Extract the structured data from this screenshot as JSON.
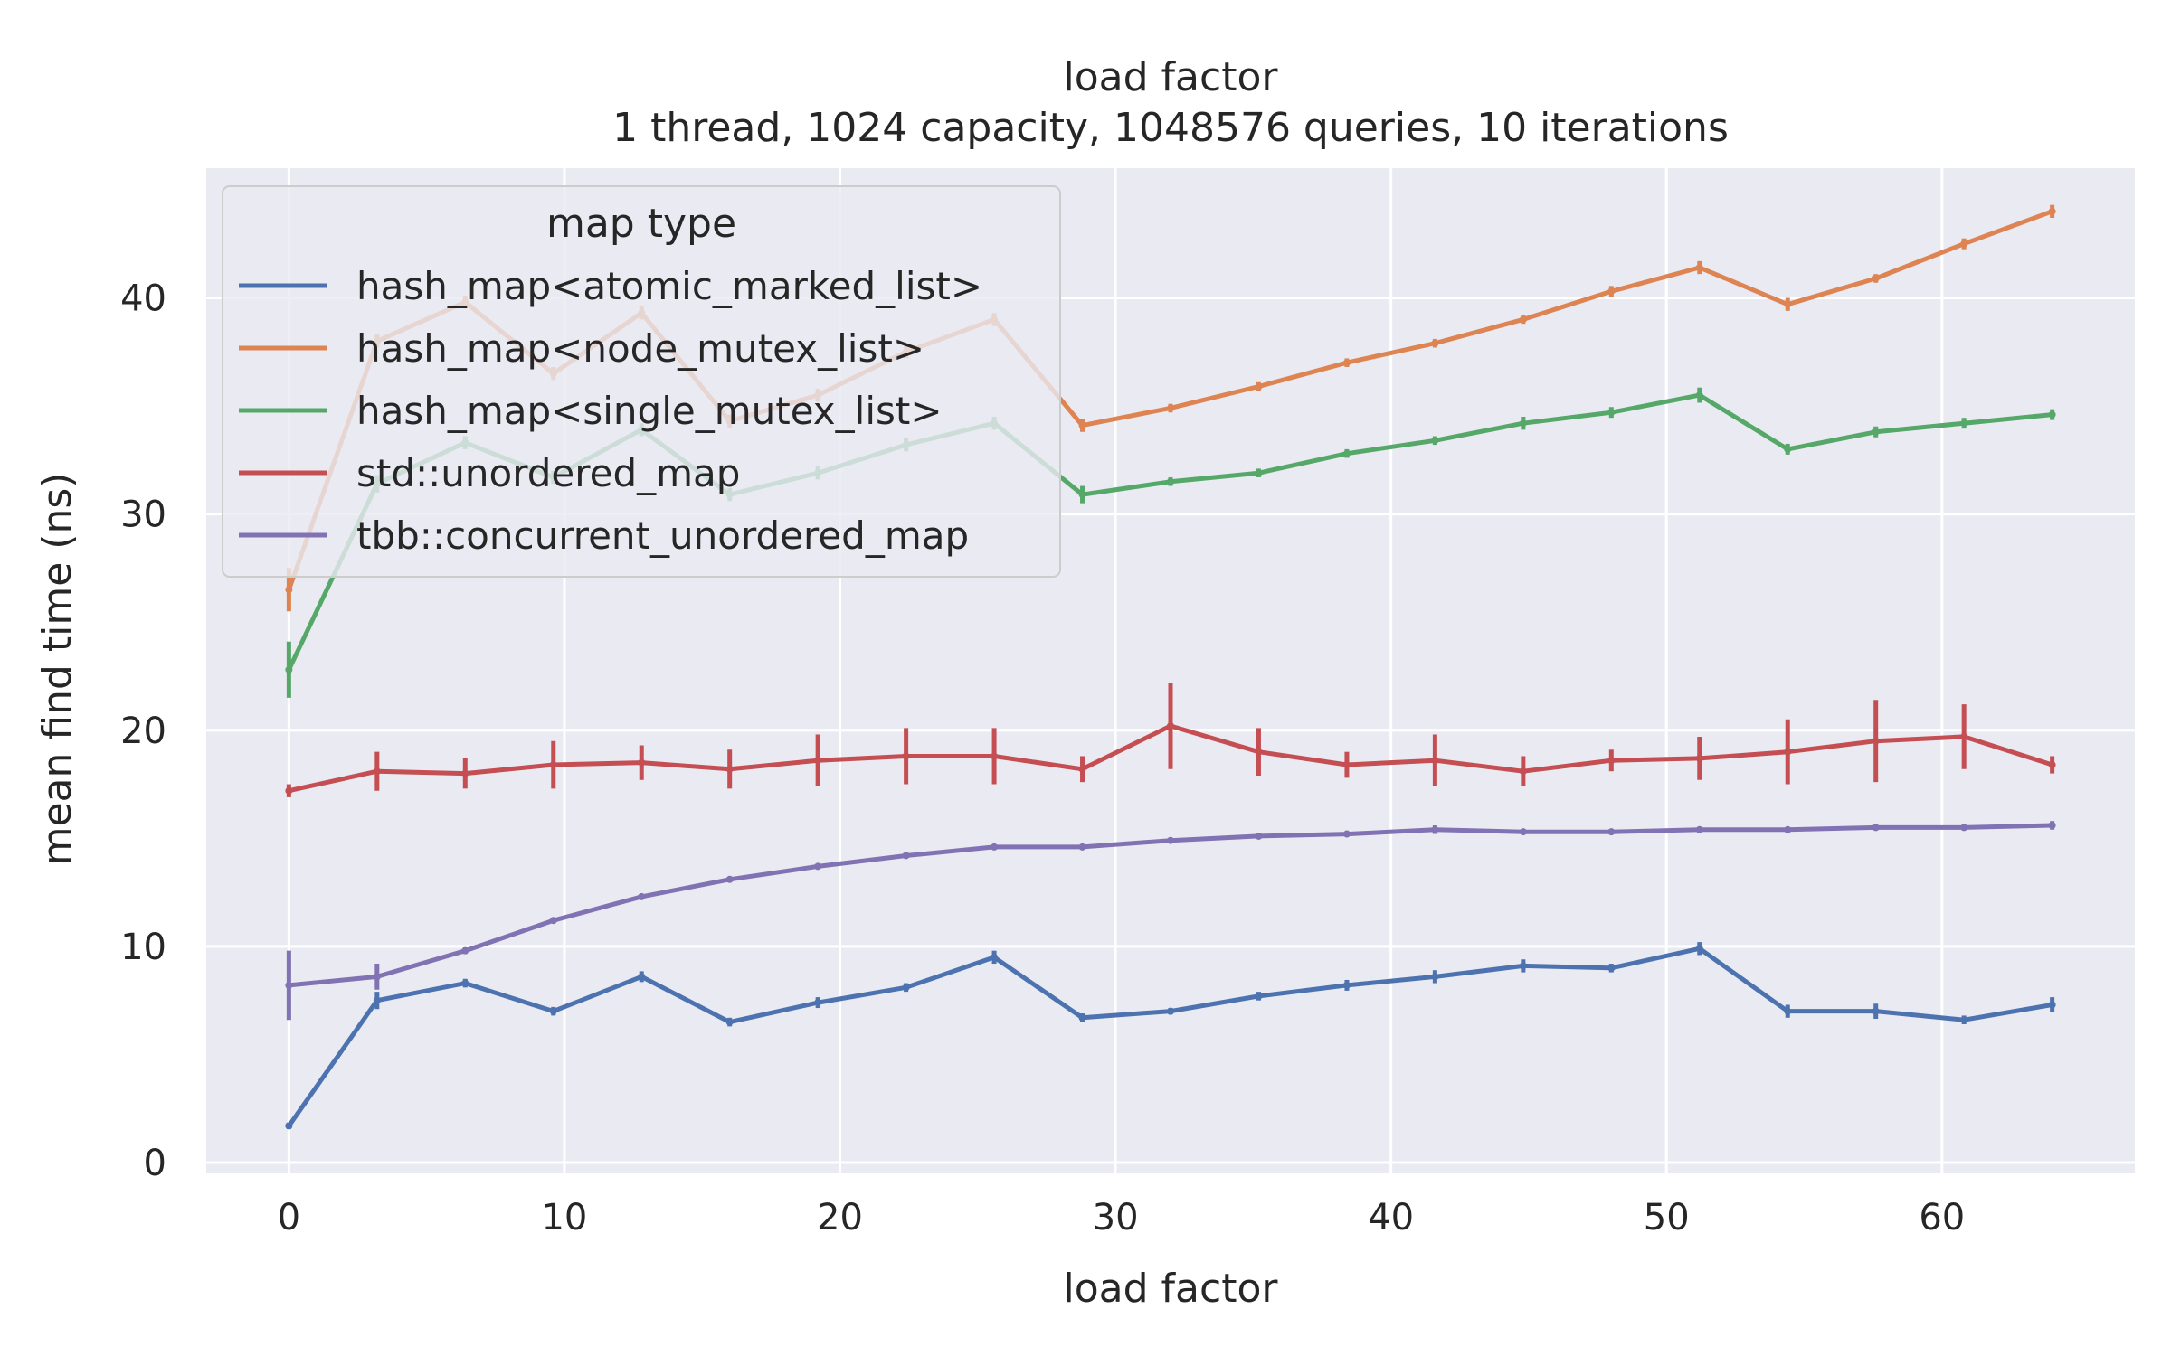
{
  "chart_data": {
    "type": "line",
    "title": "load factor",
    "subtitle": "1 thread, 1024 capacity, 1048576 queries, 10 iterations",
    "xlabel": "load factor",
    "ylabel": "mean find time (ns)",
    "xlim": [
      -3,
      67
    ],
    "ylim": [
      -0.5,
      46
    ],
    "xticks": [
      0,
      10,
      20,
      30,
      40,
      50,
      60
    ],
    "yticks": [
      0,
      10,
      20,
      30,
      40
    ],
    "grid": true,
    "legend": {
      "title": "map type",
      "placement": "top-left"
    },
    "x": [
      0,
      3.2,
      6.4,
      9.6,
      12.8,
      16,
      19.2,
      22.4,
      25.6,
      28.8,
      32,
      35.2,
      38.4,
      41.6,
      44.8,
      48,
      51.2,
      54.4,
      57.6,
      60.8,
      64
    ],
    "series": [
      {
        "name": "hash_map<atomic_marked_list>",
        "color": "#4c72b0",
        "values": [
          1.7,
          7.5,
          8.3,
          7.0,
          8.6,
          6.5,
          7.4,
          8.1,
          9.5,
          6.7,
          7.0,
          7.7,
          8.2,
          8.6,
          9.1,
          9.0,
          9.9,
          7.0,
          7.0,
          6.6,
          7.3
        ],
        "errors": [
          0.15,
          0.4,
          0.2,
          0.2,
          0.25,
          0.2,
          0.25,
          0.2,
          0.3,
          0.2,
          0.15,
          0.2,
          0.25,
          0.3,
          0.3,
          0.2,
          0.3,
          0.3,
          0.35,
          0.2,
          0.35
        ]
      },
      {
        "name": "hash_map<node_mutex_list>",
        "color": "#dd8452",
        "values": [
          26.5,
          38.0,
          39.8,
          36.5,
          39.3,
          34.3,
          35.5,
          37.5,
          39.0,
          34.1,
          34.9,
          35.9,
          37.0,
          37.9,
          39.0,
          40.3,
          41.4,
          39.7,
          40.9,
          42.5,
          44.0
        ],
        "errors": [
          1.0,
          0.3,
          0.3,
          0.3,
          0.3,
          0.3,
          0.3,
          0.3,
          0.3,
          0.3,
          0.2,
          0.2,
          0.2,
          0.2,
          0.2,
          0.25,
          0.3,
          0.3,
          0.2,
          0.25,
          0.3
        ]
      },
      {
        "name": "hash_map<single_mutex_list>",
        "color": "#55a868",
        "values": [
          22.8,
          31.4,
          33.3,
          31.7,
          33.9,
          30.9,
          31.9,
          33.2,
          34.2,
          30.9,
          31.5,
          31.9,
          32.8,
          33.4,
          34.2,
          34.7,
          35.5,
          33.0,
          33.8,
          34.2,
          34.6
        ],
        "errors": [
          1.3,
          0.4,
          0.3,
          0.3,
          0.3,
          0.3,
          0.3,
          0.3,
          0.3,
          0.4,
          0.2,
          0.2,
          0.2,
          0.2,
          0.3,
          0.25,
          0.35,
          0.25,
          0.25,
          0.25,
          0.25
        ]
      },
      {
        "name": "std::unordered_map",
        "color": "#c44e52",
        "values": [
          17.2,
          18.1,
          18.0,
          18.4,
          18.5,
          18.2,
          18.6,
          18.8,
          18.8,
          18.2,
          20.2,
          19.0,
          18.4,
          18.6,
          18.1,
          18.6,
          18.7,
          19.0,
          19.5,
          19.7,
          18.4
        ],
        "errors": [
          0.3,
          0.9,
          0.7,
          1.1,
          0.8,
          0.9,
          1.2,
          1.3,
          1.3,
          0.6,
          2.0,
          1.1,
          0.6,
          1.2,
          0.7,
          0.5,
          1.0,
          1.5,
          1.9,
          1.5,
          0.4
        ]
      },
      {
        "name": "tbb::concurrent_unordered_map",
        "color": "#8172b3",
        "values": [
          8.2,
          8.6,
          9.8,
          11.2,
          12.3,
          13.1,
          13.7,
          14.2,
          14.6,
          14.6,
          14.9,
          15.1,
          15.2,
          15.4,
          15.3,
          15.3,
          15.4,
          15.4,
          15.5,
          15.5,
          15.6
        ],
        "errors": [
          1.6,
          0.6,
          0.15,
          0.1,
          0.1,
          0.1,
          0.1,
          0.1,
          0.1,
          0.1,
          0.1,
          0.1,
          0.1,
          0.2,
          0.1,
          0.1,
          0.1,
          0.1,
          0.1,
          0.1,
          0.2
        ]
      }
    ]
  }
}
